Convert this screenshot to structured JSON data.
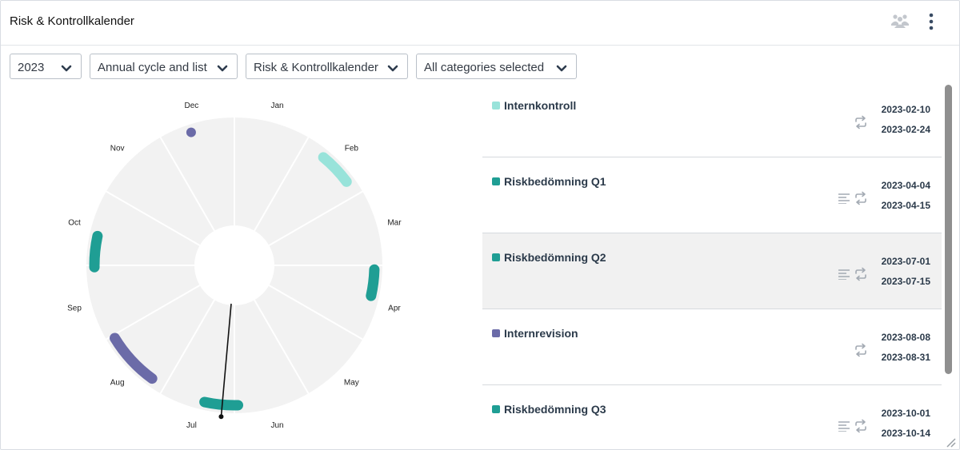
{
  "header": {
    "title": "Risk & Kontrollkalender",
    "icons": [
      "people-icon",
      "more-vert-icon"
    ]
  },
  "filters": {
    "year": "2023",
    "view": "Annual cycle and list",
    "calendar": "Risk & Kontrollkalender",
    "categories": "All categories selected"
  },
  "wheel": {
    "months": [
      "Jan",
      "Feb",
      "Mar",
      "Apr",
      "May",
      "Jun",
      "Jul",
      "Aug",
      "Sep",
      "Oct",
      "Nov",
      "Dec"
    ],
    "colors": {
      "segment": "#f2f2f2",
      "divider": "#ffffff",
      "teal": "#1f9e94",
      "light_teal": "#98e3da",
      "purple": "#6b6ba8",
      "needle": "#111111"
    }
  },
  "events": [
    {
      "name": "Internkontroll",
      "start": "2023-02-10",
      "end": "2023-02-24",
      "color": "#98e3da",
      "notes": false,
      "repeat": true,
      "selected": false
    },
    {
      "name": "Riskbedömning Q1",
      "start": "2023-04-04",
      "end": "2023-04-15",
      "color": "#1f9e94",
      "notes": true,
      "repeat": true,
      "selected": false
    },
    {
      "name": "Riskbedömning Q2",
      "start": "2023-07-01",
      "end": "2023-07-15",
      "color": "#1f9e94",
      "notes": true,
      "repeat": true,
      "selected": true
    },
    {
      "name": "Internrevision",
      "start": "2023-08-08",
      "end": "2023-08-31",
      "color": "#6b6ba8",
      "notes": false,
      "repeat": true,
      "selected": false
    },
    {
      "name": "Riskbedömning Q3",
      "start": "2023-10-01",
      "end": "2023-10-14",
      "color": "#1f9e94",
      "notes": true,
      "repeat": true,
      "selected": false
    }
  ]
}
